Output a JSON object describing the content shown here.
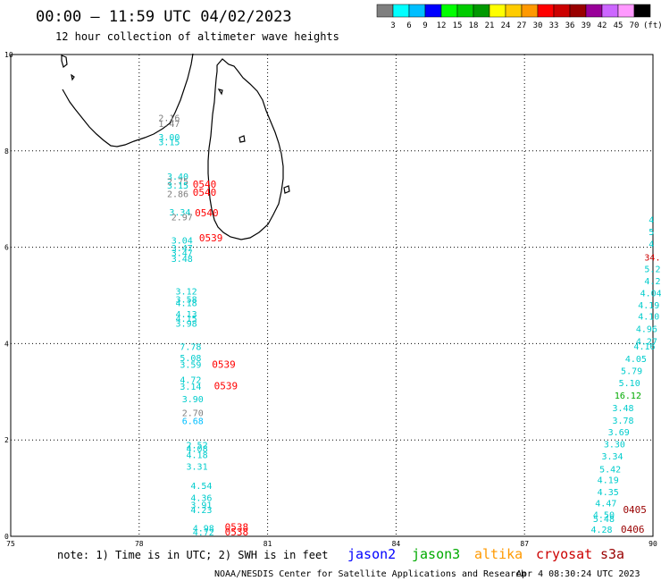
{
  "header": {
    "title": "00:00 – 11:59 UTC 04/02/2023",
    "subtitle": "12 hour collection of altimeter wave heights"
  },
  "colorbar": {
    "unit": "(ft)",
    "bins": [
      {
        "label": "3",
        "color": "#7f7f7f"
      },
      {
        "label": "6",
        "color": "#00ffff"
      },
      {
        "label": "9",
        "color": "#00bfff"
      },
      {
        "label": "12",
        "color": "#0000ff"
      },
      {
        "label": "15",
        "color": "#00ff00"
      },
      {
        "label": "18",
        "color": "#00cc00"
      },
      {
        "label": "21",
        "color": "#009900"
      },
      {
        "label": "24",
        "color": "#ffff00"
      },
      {
        "label": "27",
        "color": "#ffcc00"
      },
      {
        "label": "30",
        "color": "#ff9900"
      },
      {
        "label": "33",
        "color": "#ff0000"
      },
      {
        "label": "36",
        "color": "#cc0000"
      },
      {
        "label": "39",
        "color": "#990000"
      },
      {
        "label": "42",
        "color": "#990099"
      },
      {
        "label": "45",
        "color": "#cc66ff"
      },
      {
        "label": "70",
        "color": "#ff99ff"
      },
      {
        "label": "",
        "color": "#000000"
      }
    ]
  },
  "axes": {
    "x_ticks": [
      "75",
      "78",
      "81",
      "84",
      "87",
      "90"
    ],
    "y_ticks": [
      "0",
      "2",
      "4",
      "6",
      "8",
      "10"
    ]
  },
  "note": "note: 1) Time is in UTC; 2) SWH is in feet",
  "satellites": [
    {
      "name": "jason2",
      "color": "#0000ff"
    },
    {
      "name": "jason3",
      "color": "#00aa00"
    },
    {
      "name": "altika",
      "color": "#ff9900"
    },
    {
      "name": "cryosat",
      "color": "#cc0000"
    },
    {
      "name": "s3a",
      "color": "#990000"
    }
  ],
  "footer": {
    "org": "NOAA/NESDIS Center for Satellite Applications and Research",
    "timestamp": "Apr  4 08:30:24 UTC 2023"
  },
  "observations": [
    {
      "lon": 78.45,
      "lat": 8.62,
      "v": "2.16",
      "c": "#7f7f7f"
    },
    {
      "lon": 78.45,
      "lat": 8.5,
      "v": "1.47",
      "c": "#7f7f7f"
    },
    {
      "lon": 78.45,
      "lat": 8.22,
      "v": "3.00",
      "c": "#00cccc"
    },
    {
      "lon": 78.45,
      "lat": 8.12,
      "v": "3.15",
      "c": "#00cccc"
    },
    {
      "lon": 78.65,
      "lat": 7.4,
      "v": "3.40",
      "c": "#00cccc"
    },
    {
      "lon": 78.65,
      "lat": 7.3,
      "v": "2.75",
      "c": "#7f7f7f"
    },
    {
      "lon": 78.65,
      "lat": 7.22,
      "v": "3.15",
      "c": "#00cccc"
    },
    {
      "lon": 78.65,
      "lat": 7.04,
      "v": "2.86",
      "c": "#7f7f7f"
    },
    {
      "lon": 78.7,
      "lat": 6.66,
      "v": "3.34",
      "c": "#00cccc"
    },
    {
      "lon": 78.75,
      "lat": 6.56,
      "v": "2.97",
      "c": "#7f7f7f"
    },
    {
      "lon": 78.75,
      "lat": 6.08,
      "v": "3.04",
      "c": "#00cccc"
    },
    {
      "lon": 78.75,
      "lat": 5.92,
      "v": "3.47",
      "c": "#00cccc"
    },
    {
      "lon": 78.75,
      "lat": 5.82,
      "v": "3.47",
      "c": "#00cccc"
    },
    {
      "lon": 78.75,
      "lat": 5.7,
      "v": "3.48",
      "c": "#00cccc"
    },
    {
      "lon": 78.85,
      "lat": 5.02,
      "v": "3.12",
      "c": "#00cccc"
    },
    {
      "lon": 78.85,
      "lat": 4.85,
      "v": "3.58",
      "c": "#00cccc"
    },
    {
      "lon": 78.85,
      "lat": 4.78,
      "v": "4.18",
      "c": "#00cccc"
    },
    {
      "lon": 78.85,
      "lat": 4.55,
      "v": "4.13",
      "c": "#00cccc"
    },
    {
      "lon": 78.85,
      "lat": 4.45,
      "v": "4.15",
      "c": "#00cccc"
    },
    {
      "lon": 78.85,
      "lat": 4.35,
      "v": "3.98",
      "c": "#00cccc"
    },
    {
      "lon": 78.95,
      "lat": 3.87,
      "v": "7.78",
      "c": "#00cccc"
    },
    {
      "lon": 78.95,
      "lat": 3.64,
      "v": "5.08",
      "c": "#00cccc"
    },
    {
      "lon": 78.95,
      "lat": 3.5,
      "v": "3.59",
      "c": "#00cccc"
    },
    {
      "lon": 78.95,
      "lat": 3.18,
      "v": "4.72",
      "c": "#00cccc"
    },
    {
      "lon": 78.95,
      "lat": 3.04,
      "v": "3.14",
      "c": "#00cccc"
    },
    {
      "lon": 79.0,
      "lat": 2.78,
      "v": "3.90",
      "c": "#00cccc"
    },
    {
      "lon": 79.0,
      "lat": 2.5,
      "v": "2.70",
      "c": "#7f7f7f"
    },
    {
      "lon": 79.0,
      "lat": 2.33,
      "v": "6.68",
      "c": "#00bfff"
    },
    {
      "lon": 79.1,
      "lat": 1.83,
      "v": "2.52",
      "c": "#00cccc"
    },
    {
      "lon": 79.1,
      "lat": 1.75,
      "v": "4.08",
      "c": "#00cccc"
    },
    {
      "lon": 79.1,
      "lat": 1.62,
      "v": "4.18",
      "c": "#00cccc"
    },
    {
      "lon": 79.1,
      "lat": 1.38,
      "v": "3.31",
      "c": "#00cccc"
    },
    {
      "lon": 79.2,
      "lat": 0.98,
      "v": "4.54",
      "c": "#00cccc"
    },
    {
      "lon": 79.2,
      "lat": 0.73,
      "v": "4.36",
      "c": "#00cccc"
    },
    {
      "lon": 79.2,
      "lat": 0.58,
      "v": "3.91",
      "c": "#00cccc"
    },
    {
      "lon": 79.2,
      "lat": 0.48,
      "v": "4.23",
      "c": "#00cccc"
    },
    {
      "lon": 79.25,
      "lat": 0.1,
      "v": "4.98",
      "c": "#00cccc"
    },
    {
      "lon": 79.25,
      "lat": 0.02,
      "v": "4.72",
      "c": "#00cccc"
    },
    {
      "lon": 89.9,
      "lat": 6.5,
      "v": "4",
      "c": "#00cccc"
    },
    {
      "lon": 89.9,
      "lat": 6.25,
      "v": "5",
      "c": "#00cccc"
    },
    {
      "lon": 89.9,
      "lat": 6.0,
      "v": "4",
      "c": "#00cccc"
    },
    {
      "lon": 89.8,
      "lat": 5.72,
      "v": "34.",
      "c": "#cc0000"
    },
    {
      "lon": 89.8,
      "lat": 5.48,
      "v": "5.2",
      "c": "#00cccc"
    },
    {
      "lon": 89.8,
      "lat": 5.23,
      "v": "4.2",
      "c": "#00cccc"
    },
    {
      "lon": 89.7,
      "lat": 4.98,
      "v": "4.04",
      "c": "#00cccc"
    },
    {
      "lon": 89.65,
      "lat": 4.73,
      "v": "4.19",
      "c": "#00cccc"
    },
    {
      "lon": 89.65,
      "lat": 4.5,
      "v": "4.10",
      "c": "#00cccc"
    },
    {
      "lon": 89.6,
      "lat": 4.24,
      "v": "4.96",
      "c": "#00cccc"
    },
    {
      "lon": 89.6,
      "lat": 3.98,
      "v": "4.27",
      "c": "#00cccc"
    },
    {
      "lon": 89.55,
      "lat": 3.88,
      "v": "4.16",
      "c": "#00cccc"
    },
    {
      "lon": 89.35,
      "lat": 3.62,
      "v": "4.05",
      "c": "#00cccc"
    },
    {
      "lon": 89.25,
      "lat": 3.37,
      "v": "5.79",
      "c": "#00cccc"
    },
    {
      "lon": 89.2,
      "lat": 3.12,
      "v": "5.10",
      "c": "#00cccc"
    },
    {
      "lon": 89.1,
      "lat": 2.86,
      "v": "16.12",
      "c": "#00aa00"
    },
    {
      "lon": 89.05,
      "lat": 2.6,
      "v": "3.48",
      "c": "#00cccc"
    },
    {
      "lon": 89.05,
      "lat": 2.34,
      "v": "3.78",
      "c": "#00cccc"
    },
    {
      "lon": 88.95,
      "lat": 2.1,
      "v": "3.69",
      "c": "#00cccc"
    },
    {
      "lon": 88.85,
      "lat": 1.85,
      "v": "3.30",
      "c": "#00cccc"
    },
    {
      "lon": 88.8,
      "lat": 1.6,
      "v": "3.34",
      "c": "#00cccc"
    },
    {
      "lon": 88.75,
      "lat": 1.33,
      "v": "5.42",
      "c": "#00cccc"
    },
    {
      "lon": 88.7,
      "lat": 1.1,
      "v": "4.19",
      "c": "#00cccc"
    },
    {
      "lon": 88.7,
      "lat": 0.85,
      "v": "4.35",
      "c": "#00cccc"
    },
    {
      "lon": 88.65,
      "lat": 0.62,
      "v": "4.47",
      "c": "#00cccc"
    },
    {
      "lon": 88.6,
      "lat": 0.38,
      "v": "4.50",
      "c": "#00cccc"
    },
    {
      "lon": 88.6,
      "lat": 0.3,
      "v": "5.48",
      "c": "#00cccc"
    },
    {
      "lon": 88.55,
      "lat": 0.07,
      "v": "4.28",
      "c": "#00cccc"
    }
  ],
  "time_labels": [
    {
      "lon": 79.25,
      "lat": 7.24,
      "t": "0540",
      "c": "#ff0000"
    },
    {
      "lon": 79.25,
      "lat": 7.07,
      "t": "0540",
      "c": "#ff0000"
    },
    {
      "lon": 79.3,
      "lat": 6.64,
      "t": "0540",
      "c": "#ff0000"
    },
    {
      "lon": 79.4,
      "lat": 6.12,
      "t": "0539",
      "c": "#ff0000"
    },
    {
      "lon": 79.7,
      "lat": 3.5,
      "t": "0539",
      "c": "#ff0000"
    },
    {
      "lon": 79.75,
      "lat": 3.05,
      "t": "0539",
      "c": "#ff0000"
    },
    {
      "lon": 80.0,
      "lat": 0.12,
      "t": "0538",
      "c": "#ff0000"
    },
    {
      "lon": 80.0,
      "lat": 0.02,
      "t": "0538",
      "c": "#ff0000"
    },
    {
      "lon": 89.3,
      "lat": 0.48,
      "t": "0405",
      "c": "#990000"
    },
    {
      "lon": 89.25,
      "lat": 0.07,
      "t": "0406",
      "c": "#990000"
    }
  ]
}
